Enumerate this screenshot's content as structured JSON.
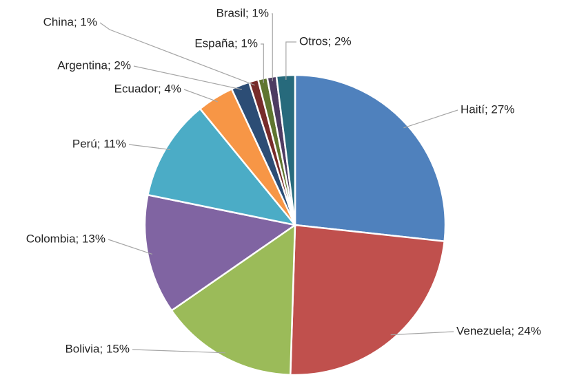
{
  "chart_data": {
    "type": "pie",
    "values": [
      27,
      24,
      15,
      13,
      11,
      4,
      2,
      1,
      1,
      1,
      2
    ],
    "value_labels": [
      "Haití; 27%",
      "Venezuela; 24%",
      "Bolivia; 15%",
      "Colombia; 13%",
      "Perú; 11%",
      "Ecuador; 4%",
      "Argentina; 2%",
      "China; 1%",
      "España; 1%",
      "Brasil; 1%",
      "Otros; 2%"
    ],
    "colors": [
      "#4f81bd",
      "#c0504d",
      "#9bbb59",
      "#8064a2",
      "#4bacc6",
      "#f79646",
      "#2c4d75",
      "#772c2a",
      "#5f7530",
      "#4d3b62",
      "#276a7c"
    ]
  }
}
